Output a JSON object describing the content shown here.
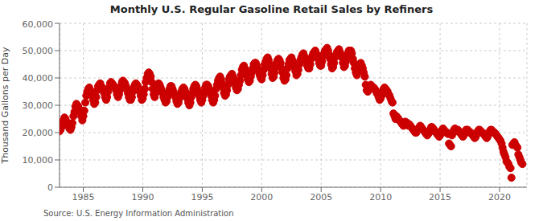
{
  "chart_data": {
    "type": "scatter",
    "title": "Monthly U.S. Regular Gasoline Retail Sales by Refiners",
    "y_label": "Thousand Gallons per Day",
    "annotations": [
      "Source: U.S. Energy Information Administration"
    ],
    "color": "#cc0000",
    "grid": true,
    "xlim": [
      1983.0,
      2022.3
    ],
    "xticks": [
      1985,
      1990,
      1995,
      2000,
      2005,
      2010,
      2015,
      2020
    ],
    "ylim": [
      0,
      60000
    ],
    "yticks": [
      0,
      {
        "value": 10000,
        "label": "10,000"
      },
      {
        "value": 20000,
        "label": "20,000"
      },
      {
        "value": 30000,
        "label": "30,000"
      },
      {
        "value": 40000,
        "label": "40,000"
      },
      {
        "value": 50000,
        "label": "50,000"
      },
      {
        "value": 60000,
        "label": "60,000"
      }
    ],
    "x": [
      1983.0,
      1983.08,
      1983.17,
      1983.25,
      1983.33,
      1983.42,
      1983.5,
      1983.58,
      1983.67,
      1983.75,
      1983.83,
      1983.92,
      1984.0,
      1984.08,
      1984.17,
      1984.25,
      1984.33,
      1984.42,
      1984.5,
      1984.58,
      1984.67,
      1984.75,
      1984.83,
      1984.92,
      1985.0,
      1985.08,
      1985.17,
      1985.25,
      1985.33,
      1985.42,
      1985.5,
      1985.58,
      1985.67,
      1985.75,
      1985.83,
      1985.92,
      1986.0,
      1986.08,
      1986.17,
      1986.25,
      1986.33,
      1986.42,
      1986.5,
      1986.58,
      1986.67,
      1986.75,
      1986.83,
      1986.92,
      1987.0,
      1987.08,
      1987.17,
      1987.25,
      1987.33,
      1987.42,
      1987.5,
      1987.58,
      1987.67,
      1987.75,
      1987.83,
      1987.92,
      1988.0,
      1988.08,
      1988.17,
      1988.25,
      1988.33,
      1988.42,
      1988.5,
      1988.58,
      1988.67,
      1988.75,
      1988.83,
      1988.92,
      1989.0,
      1989.08,
      1989.17,
      1989.25,
      1989.33,
      1989.42,
      1989.5,
      1989.58,
      1989.67,
      1989.75,
      1989.83,
      1989.92,
      1990.0,
      1990.08,
      1990.17,
      1990.25,
      1990.33,
      1990.42,
      1990.5,
      1990.58,
      1990.67,
      1990.75,
      1990.83,
      1990.92,
      1991.0,
      1991.08,
      1991.17,
      1991.25,
      1991.33,
      1991.42,
      1991.5,
      1991.58,
      1991.67,
      1991.75,
      1991.83,
      1991.92,
      1992.0,
      1992.08,
      1992.17,
      1992.25,
      1992.33,
      1992.42,
      1992.5,
      1992.58,
      1992.67,
      1992.75,
      1992.83,
      1992.92,
      1993.0,
      1993.08,
      1993.17,
      1993.25,
      1993.33,
      1993.42,
      1993.5,
      1993.58,
      1993.67,
      1993.75,
      1993.83,
      1993.92,
      1994.0,
      1994.08,
      1994.17,
      1994.25,
      1994.33,
      1994.42,
      1994.5,
      1994.58,
      1994.67,
      1994.75,
      1994.83,
      1994.92,
      1995.0,
      1995.08,
      1995.17,
      1995.25,
      1995.33,
      1995.42,
      1995.5,
      1995.58,
      1995.67,
      1995.75,
      1995.83,
      1995.92,
      1996.0,
      1996.08,
      1996.17,
      1996.25,
      1996.33,
      1996.42,
      1996.5,
      1996.58,
      1996.67,
      1996.75,
      1996.83,
      1996.92,
      1997.0,
      1997.08,
      1997.17,
      1997.25,
      1997.33,
      1997.42,
      1997.5,
      1997.58,
      1997.67,
      1997.75,
      1997.83,
      1997.92,
      1998.0,
      1998.08,
      1998.17,
      1998.25,
      1998.33,
      1998.42,
      1998.5,
      1998.58,
      1998.67,
      1998.75,
      1998.83,
      1998.92,
      1999.0,
      1999.08,
      1999.17,
      1999.25,
      1999.33,
      1999.42,
      1999.5,
      1999.58,
      1999.67,
      1999.75,
      1999.83,
      1999.92,
      2000.0,
      2000.08,
      2000.17,
      2000.25,
      2000.33,
      2000.42,
      2000.5,
      2000.58,
      2000.67,
      2000.75,
      2000.83,
      2000.92,
      2001.0,
      2001.08,
      2001.17,
      2001.25,
      2001.33,
      2001.42,
      2001.5,
      2001.58,
      2001.67,
      2001.75,
      2001.83,
      2001.92,
      2002.0,
      2002.08,
      2002.17,
      2002.25,
      2002.33,
      2002.42,
      2002.5,
      2002.58,
      2002.67,
      2002.75,
      2002.83,
      2002.92,
      2003.0,
      2003.08,
      2003.17,
      2003.25,
      2003.33,
      2003.42,
      2003.5,
      2003.58,
      2003.67,
      2003.75,
      2003.83,
      2003.92,
      2004.0,
      2004.08,
      2004.17,
      2004.25,
      2004.33,
      2004.42,
      2004.5,
      2004.58,
      2004.67,
      2004.75,
      2004.83,
      2004.92,
      2005.0,
      2005.08,
      2005.17,
      2005.25,
      2005.33,
      2005.42,
      2005.5,
      2005.58,
      2005.67,
      2005.75,
      2005.83,
      2005.92,
      2006.0,
      2006.08,
      2006.17,
      2006.25,
      2006.33,
      2006.42,
      2006.5,
      2006.58,
      2006.67,
      2006.75,
      2006.83,
      2006.92,
      2007.0,
      2007.08,
      2007.17,
      2007.25,
      2007.33,
      2007.42,
      2007.5,
      2007.58,
      2007.67,
      2007.75,
      2007.83,
      2007.92,
      2008.0,
      2008.08,
      2008.17,
      2008.25,
      2008.33,
      2008.42,
      2008.5,
      2008.58,
      2008.67,
      2008.75,
      2008.83,
      2008.92,
      2009.0,
      2009.08,
      2009.17,
      2009.25,
      2009.33,
      2009.42,
      2009.5,
      2009.58,
      2009.67,
      2009.75,
      2009.83,
      2009.92,
      2010.0,
      2010.08,
      2010.17,
      2010.25,
      2010.33,
      2010.42,
      2010.5,
      2010.58,
      2010.67,
      2010.75,
      2010.83,
      2010.92,
      2011.0,
      2011.08,
      2011.17,
      2011.25,
      2011.33,
      2011.42,
      2011.5,
      2011.58,
      2011.67,
      2011.75,
      2011.83,
      2011.92,
      2012.0,
      2012.08,
      2012.17,
      2012.25,
      2012.33,
      2012.42,
      2012.5,
      2012.58,
      2012.67,
      2012.75,
      2012.83,
      2012.92,
      2013.0,
      2013.08,
      2013.17,
      2013.25,
      2013.33,
      2013.42,
      2013.5,
      2013.58,
      2013.67,
      2013.75,
      2013.83,
      2013.92,
      2014.0,
      2014.08,
      2014.17,
      2014.25,
      2014.33,
      2014.42,
      2014.5,
      2014.58,
      2014.67,
      2014.75,
      2014.83,
      2014.92,
      2015.0,
      2015.08,
      2015.17,
      2015.25,
      2015.33,
      2015.42,
      2015.5,
      2015.58,
      2015.67,
      2015.75,
      2015.83,
      2015.92,
      2016.0,
      2016.08,
      2016.17,
      2016.25,
      2016.33,
      2016.42,
      2016.5,
      2016.58,
      2016.67,
      2016.75,
      2016.83,
      2016.92,
      2017.0,
      2017.08,
      2017.17,
      2017.25,
      2017.33,
      2017.42,
      2017.5,
      2017.58,
      2017.67,
      2017.75,
      2017.83,
      2017.92,
      2018.0,
      2018.08,
      2018.17,
      2018.25,
      2018.33,
      2018.42,
      2018.5,
      2018.58,
      2018.67,
      2018.75,
      2018.83,
      2018.92,
      2019.0,
      2019.08,
      2019.17,
      2019.25,
      2019.33,
      2019.42,
      2019.5,
      2019.58,
      2019.67,
      2019.75,
      2019.83,
      2019.92,
      2020.0,
      2020.08,
      2020.17,
      2020.25,
      2020.33,
      2020.42,
      2020.5,
      2020.58,
      2020.67,
      2020.75,
      2020.83,
      2020.92,
      2021.0,
      2021.08,
      2021.17,
      2021.25,
      2021.33,
      2021.42,
      2021.5,
      2021.58,
      2021.67,
      2021.75,
      2021.83,
      2021.92
    ],
    "values": [
      20500,
      21000,
      22000,
      23500,
      24500,
      25500,
      25000,
      24000,
      23500,
      22500,
      21500,
      21000,
      22000,
      23500,
      26000,
      27500,
      29500,
      30500,
      30000,
      29500,
      28500,
      27500,
      26000,
      24500,
      26000,
      28000,
      31000,
      33500,
      35000,
      36000,
      36500,
      35500,
      34500,
      33500,
      32000,
      30500,
      31000,
      33000,
      35500,
      37000,
      37500,
      38000,
      37000,
      36500,
      35500,
      34500,
      33000,
      32000,
      33000,
      35000,
      36500,
      38000,
      38500,
      38000,
      37500,
      37000,
      36500,
      35500,
      34000,
      33000,
      34000,
      35500,
      37000,
      38500,
      39000,
      38500,
      38000,
      37000,
      36000,
      34500,
      33000,
      32000,
      32000,
      33000,
      35000,
      36500,
      37500,
      38000,
      37500,
      37000,
      36000,
      35000,
      33500,
      32000,
      32500,
      34000,
      36000,
      38500,
      40000,
      41500,
      42000,
      41500,
      40500,
      38500,
      36000,
      34000,
      33000,
      34500,
      36000,
      37500,
      38000,
      37500,
      36500,
      35500,
      34500,
      33000,
      32000,
      31000,
      31500,
      33000,
      34500,
      36000,
      37000,
      37000,
      36000,
      35000,
      34000,
      33000,
      31500,
      30500,
      31000,
      32500,
      33500,
      35000,
      36000,
      36500,
      36000,
      35000,
      33500,
      32500,
      31000,
      30000,
      31000,
      33000,
      34500,
      36000,
      37000,
      37500,
      37000,
      36000,
      34500,
      33500,
      32000,
      31000,
      32000,
      33500,
      35000,
      36500,
      37500,
      37500,
      37000,
      36000,
      34500,
      33500,
      32000,
      31000,
      32000,
      33500,
      36000,
      37500,
      39000,
      40000,
      40500,
      39500,
      38000,
      36500,
      34500,
      33500,
      34000,
      35500,
      37500,
      39500,
      40500,
      41000,
      41500,
      40500,
      39500,
      38000,
      36500,
      35500,
      36000,
      37500,
      39000,
      41000,
      43000,
      44000,
      44500,
      43500,
      42500,
      41000,
      39500,
      38500,
      39000,
      40500,
      42000,
      43500,
      45000,
      45500,
      45500,
      44500,
      43500,
      42500,
      41000,
      40000,
      39500,
      41000,
      43000,
      45000,
      46000,
      47000,
      47500,
      46500,
      45000,
      43500,
      41500,
      40000,
      40500,
      42000,
      44000,
      45500,
      46500,
      47000,
      46500,
      45500,
      43500,
      42000,
      40000,
      39000,
      39500,
      41000,
      43500,
      45000,
      46500,
      47000,
      47500,
      46500,
      45500,
      44000,
      42500,
      41000,
      41500,
      43000,
      45000,
      46500,
      47500,
      48500,
      49000,
      48000,
      47000,
      46000,
      44500,
      43500,
      43500,
      45000,
      47000,
      48000,
      49000,
      49500,
      50000,
      49000,
      48000,
      47000,
      45500,
      44500,
      44500,
      46000,
      48000,
      49000,
      50000,
      50500,
      51000,
      50000,
      48500,
      47000,
      45000,
      43500,
      44000,
      45500,
      47500,
      48500,
      49500,
      50000,
      50500,
      49500,
      48500,
      47500,
      45500,
      44000,
      44500,
      46000,
      48000,
      49000,
      50000,
      50000,
      50000,
      49000,
      47000,
      45500,
      43500,
      42000,
      41000,
      43000,
      44000,
      45000,
      45500,
      44500,
      43500,
      42000,
      40500,
      37500,
      35500,
      35000,
      35500,
      36500,
      37500,
      37000,
      36500,
      36500,
      36000,
      35500,
      34500,
      34000,
      33000,
      32000,
      32500,
      33500,
      35000,
      36000,
      36500,
      36000,
      35500,
      35000,
      34000,
      33500,
      32500,
      31500,
      31000,
      27000,
      26000,
      25000,
      26000,
      25500,
      25000,
      24500,
      24000,
      23500,
      23000,
      22500,
      23000,
      24000,
      23000,
      23500,
      22500,
      23000,
      22500,
      22000,
      21500,
      21000,
      20500,
      20000,
      20000,
      21000,
      21500,
      22000,
      22500,
      22000,
      21500,
      21000,
      20500,
      20000,
      19500,
      19000,
      19500,
      20000,
      21000,
      22000,
      22000,
      21500,
      21000,
      20500,
      20000,
      19500,
      19000,
      18500,
      19000,
      20000,
      21000,
      21500,
      21000,
      20500,
      20000,
      20000,
      19500,
      16000,
      15500,
      15000,
      19000,
      20000,
      21000,
      21500,
      21000,
      20500,
      21000,
      20500,
      20000,
      19500,
      19000,
      18500,
      19000,
      20000,
      21000,
      21000,
      21000,
      20500,
      20000,
      20000,
      19500,
      19000,
      18500,
      18000,
      18500,
      19500,
      20500,
      21000,
      21000,
      20500,
      20000,
      20000,
      19500,
      19000,
      18500,
      18000,
      18500,
      19500,
      20500,
      21000,
      21000,
      20500,
      20000,
      20000,
      19500,
      19000,
      18500,
      18000,
      17500,
      17000,
      16000,
      14500,
      13000,
      12000,
      11000,
      9500,
      9000,
      8500,
      7500,
      7000,
      3500,
      15500,
      16000,
      16500,
      15500,
      15000,
      14500,
      12000,
      11000,
      10000,
      9000,
      8500
    ]
  }
}
